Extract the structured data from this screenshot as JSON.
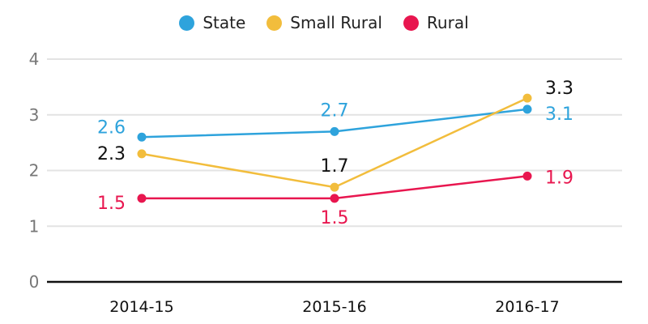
{
  "chart_data": {
    "type": "line",
    "title": "",
    "xlabel": "",
    "ylabel": "",
    "categories": [
      "2014-15",
      "2015-16",
      "2016-17"
    ],
    "ylim": [
      0,
      4
    ],
    "yticks": [
      0,
      1,
      2,
      3,
      4
    ],
    "grid": true,
    "legend_position": "top-center",
    "series": [
      {
        "name": "State",
        "color": "#2ea3dc",
        "label_color": "#2ea3dc",
        "values": [
          2.6,
          2.7,
          3.1
        ],
        "labels": [
          "2.6",
          "2.7",
          "3.1"
        ]
      },
      {
        "name": "Small Rural",
        "color": "#f2bd3c",
        "label_color": "#111111",
        "values": [
          2.3,
          1.7,
          3.3
        ],
        "labels": [
          "2.3",
          "1.7",
          "3.3"
        ]
      },
      {
        "name": "Rural",
        "color": "#e8164f",
        "label_color": "#e8164f",
        "values": [
          1.5,
          1.5,
          1.9
        ],
        "labels": [
          "1.5",
          "1.5",
          "1.9"
        ]
      }
    ]
  }
}
